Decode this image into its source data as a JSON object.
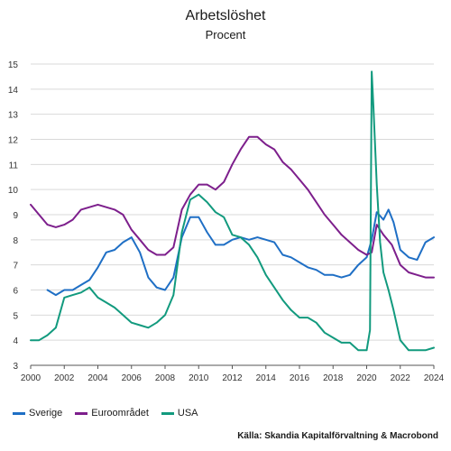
{
  "chart_data": {
    "type": "line",
    "title": "Arbetslöshet",
    "subtitle": "Procent",
    "source": "Källa: Skandia Kapitalförvaltning & Macrobond",
    "xlabel": "",
    "ylabel": "",
    "xlim": [
      2000,
      2024
    ],
    "ylim": [
      3,
      15
    ],
    "x_ticks": [
      "2000",
      "2002",
      "2004",
      "2006",
      "2008",
      "2010",
      "2012",
      "2014",
      "2016",
      "2018",
      "2020",
      "2022",
      "2024"
    ],
    "y_ticks": [
      "3",
      "4",
      "5",
      "6",
      "7",
      "8",
      "9",
      "10",
      "11",
      "12",
      "13",
      "14",
      "15"
    ],
    "grid": "horizontal",
    "legend_position": "bottom-left",
    "series": [
      {
        "name": "Sverige",
        "color": "#1f6fc5",
        "x": [
          2001.0,
          2001.5,
          2002.0,
          2002.5,
          2003.0,
          2003.5,
          2004.0,
          2004.5,
          2005.0,
          2005.5,
          2006.0,
          2006.5,
          2007.0,
          2007.5,
          2008.0,
          2008.5,
          2009.0,
          2009.5,
          2010.0,
          2010.5,
          2011.0,
          2011.5,
          2012.0,
          2012.5,
          2013.0,
          2013.5,
          2014.0,
          2014.5,
          2015.0,
          2015.5,
          2016.0,
          2016.5,
          2017.0,
          2017.5,
          2018.0,
          2018.5,
          2019.0,
          2019.5,
          2020.0,
          2020.3,
          2020.6,
          2021.0,
          2021.3,
          2021.6,
          2022.0,
          2022.5,
          2023.0,
          2023.5,
          2024.0
        ],
        "values": [
          6.0,
          5.8,
          6.0,
          6.0,
          6.2,
          6.4,
          6.9,
          7.5,
          7.6,
          7.9,
          8.1,
          7.5,
          6.5,
          6.1,
          6.0,
          6.5,
          8.1,
          8.9,
          8.9,
          8.3,
          7.8,
          7.8,
          8.0,
          8.1,
          8.0,
          8.1,
          8.0,
          7.9,
          7.4,
          7.3,
          7.1,
          6.9,
          6.8,
          6.6,
          6.6,
          6.5,
          6.6,
          7.0,
          7.3,
          8.0,
          9.1,
          8.8,
          9.2,
          8.7,
          7.6,
          7.3,
          7.2,
          7.9,
          8.1
        ]
      },
      {
        "name": "Euroområdet",
        "color": "#7d1f8c",
        "x": [
          2000.0,
          2000.5,
          2001.0,
          2001.5,
          2002.0,
          2002.5,
          2003.0,
          2003.5,
          2004.0,
          2004.5,
          2005.0,
          2005.5,
          2006.0,
          2006.5,
          2007.0,
          2007.5,
          2008.0,
          2008.5,
          2009.0,
          2009.5,
          2010.0,
          2010.5,
          2011.0,
          2011.5,
          2012.0,
          2012.5,
          2013.0,
          2013.5,
          2014.0,
          2014.5,
          2015.0,
          2015.5,
          2016.0,
          2016.5,
          2017.0,
          2017.5,
          2018.0,
          2018.5,
          2019.0,
          2019.5,
          2020.0,
          2020.3,
          2020.6,
          2021.0,
          2021.5,
          2022.0,
          2022.5,
          2023.0,
          2023.5,
          2024.0
        ],
        "values": [
          9.4,
          9.0,
          8.6,
          8.5,
          8.6,
          8.8,
          9.2,
          9.3,
          9.4,
          9.3,
          9.2,
          9.0,
          8.4,
          8.0,
          7.6,
          7.4,
          7.4,
          7.7,
          9.2,
          9.8,
          10.2,
          10.2,
          10.0,
          10.3,
          11.0,
          11.6,
          12.1,
          12.1,
          11.8,
          11.6,
          11.1,
          10.8,
          10.4,
          10.0,
          9.5,
          9.0,
          8.6,
          8.2,
          7.9,
          7.6,
          7.4,
          7.5,
          8.6,
          8.2,
          7.8,
          7.0,
          6.7,
          6.6,
          6.5,
          6.5
        ]
      },
      {
        "name": "USA",
        "color": "#129a7e",
        "x": [
          2000.0,
          2000.5,
          2001.0,
          2001.5,
          2002.0,
          2002.5,
          2003.0,
          2003.5,
          2004.0,
          2004.5,
          2005.0,
          2005.5,
          2006.0,
          2006.5,
          2007.0,
          2007.5,
          2008.0,
          2008.5,
          2009.0,
          2009.5,
          2010.0,
          2010.5,
          2011.0,
          2011.5,
          2012.0,
          2012.5,
          2013.0,
          2013.5,
          2014.0,
          2014.5,
          2015.0,
          2015.5,
          2016.0,
          2016.5,
          2017.0,
          2017.5,
          2018.0,
          2018.5,
          2019.0,
          2019.5,
          2020.0,
          2020.2,
          2020.3,
          2020.4,
          2020.6,
          2020.8,
          2021.0,
          2021.3,
          2021.6,
          2022.0,
          2022.5,
          2023.0,
          2023.5,
          2024.0
        ],
        "values": [
          4.0,
          4.0,
          4.2,
          4.5,
          5.7,
          5.8,
          5.9,
          6.1,
          5.7,
          5.5,
          5.3,
          5.0,
          4.7,
          4.6,
          4.5,
          4.7,
          5.0,
          5.8,
          8.3,
          9.6,
          9.8,
          9.5,
          9.1,
          8.9,
          8.2,
          8.1,
          7.8,
          7.3,
          6.6,
          6.1,
          5.6,
          5.2,
          4.9,
          4.9,
          4.7,
          4.3,
          4.1,
          3.9,
          3.9,
          3.6,
          3.6,
          4.4,
          14.7,
          13.3,
          10.2,
          7.9,
          6.7,
          6.0,
          5.2,
          4.0,
          3.6,
          3.6,
          3.6,
          3.7
        ]
      }
    ]
  }
}
